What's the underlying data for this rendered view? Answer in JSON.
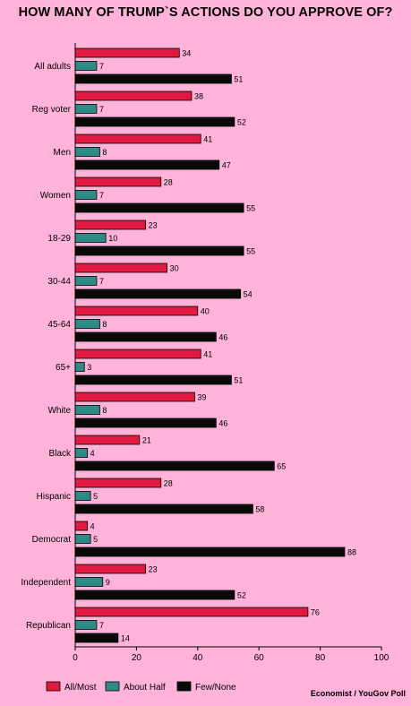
{
  "chart_data": {
    "type": "bar",
    "orientation": "horizontal",
    "title": "HOW MANY OF TRUMP`S ACTIONS DO YOU APPROVE OF?",
    "categories": [
      "All adults",
      "Reg voter",
      "Men",
      "Women",
      "18-29",
      "30-44",
      "45-64",
      "65+",
      "White",
      "Black",
      "Hispanic",
      "Democrat",
      "Independent",
      "Republican"
    ],
    "series": [
      {
        "name": "All/Most",
        "color": "#e0193f",
        "values": [
          34,
          38,
          41,
          28,
          23,
          30,
          40,
          41,
          39,
          21,
          28,
          4,
          23,
          76
        ]
      },
      {
        "name": "About Half",
        "color": "#2f8a85",
        "values": [
          7,
          7,
          8,
          7,
          10,
          7,
          8,
          3,
          8,
          4,
          5,
          5,
          9,
          7
        ]
      },
      {
        "name": "Few/None",
        "color": "#0a0a0a",
        "values": [
          51,
          52,
          47,
          55,
          55,
          54,
          46,
          51,
          46,
          65,
          58,
          88,
          52,
          14
        ]
      }
    ],
    "xlim": [
      0,
      100
    ],
    "xticks": [
      0,
      20,
      40,
      60,
      80,
      100
    ],
    "legend_position": "bottom-left",
    "source": "Economist / YouGov Poll"
  }
}
